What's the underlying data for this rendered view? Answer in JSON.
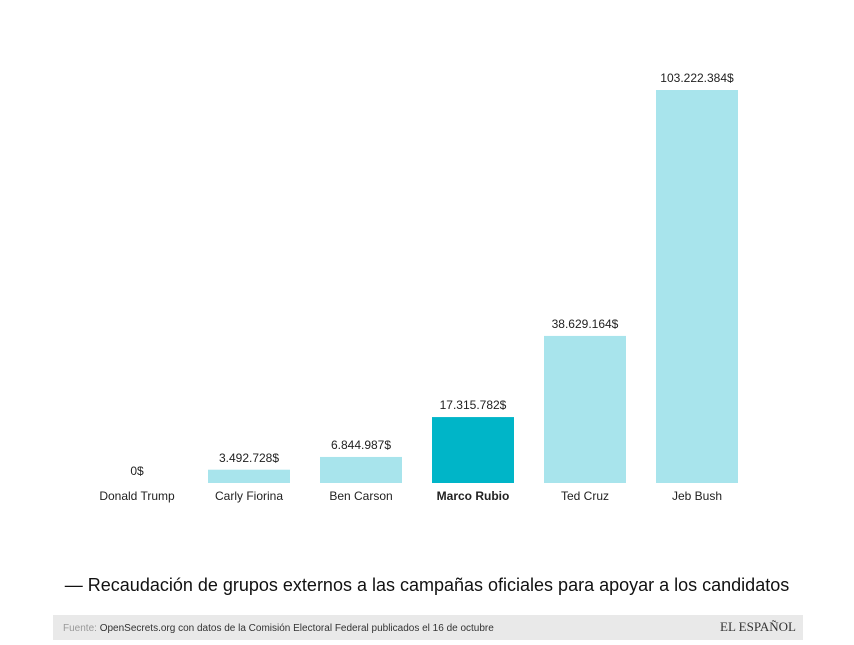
{
  "chart_data": {
    "type": "bar",
    "categories": [
      "Donald Trump",
      "Carly Fiorina",
      "Ben Carson",
      "Marco Rubio",
      "Ted Cruz",
      "Jeb Bush"
    ],
    "values": [
      0,
      3492728,
      6844987,
      17315782,
      38629164,
      103222384
    ],
    "value_labels": [
      "0$",
      "3.492.728$",
      "6.844.987$",
      "17.315.782$",
      "38.629.164$",
      "103.222.384$"
    ],
    "colors": [
      "#a8e4ec",
      "#a8e4ec",
      "#a8e4ec",
      "#00b5c8",
      "#a8e4ec",
      "#a8e4ec"
    ],
    "highlight_color": "#00b5c8",
    "caption": "— Recaudación de grupos externos a las campañas oficiales para apoyar a los candidatos",
    "source_label": "Fuente:",
    "source": "OpenSecrets.org con datos de la Comisión Electoral Federal publicados el 16 de octubre",
    "logo": "EL ESPAÑOL"
  }
}
